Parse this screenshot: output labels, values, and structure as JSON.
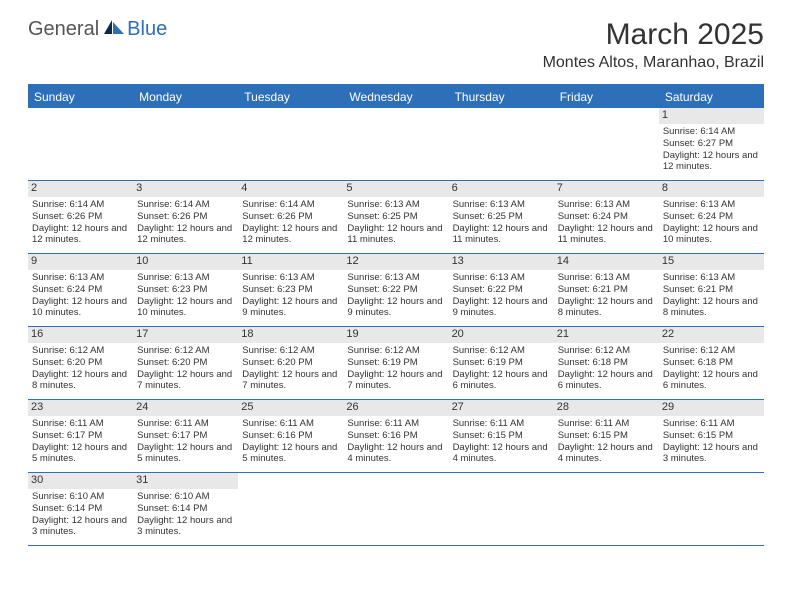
{
  "brand": {
    "part1": "General",
    "part2": "Blue"
  },
  "title": "March 2025",
  "location": "Montes Altos, Maranhao, Brazil",
  "colors": {
    "accent": "#2d6fb8",
    "header_bg": "#2d6fb8",
    "daynum_bg": "#e8e8e8",
    "text": "#333333",
    "bg": "#ffffff"
  },
  "weekdays": [
    "Sunday",
    "Monday",
    "Tuesday",
    "Wednesday",
    "Thursday",
    "Friday",
    "Saturday"
  ],
  "weeks": [
    [
      null,
      null,
      null,
      null,
      null,
      null,
      {
        "n": "1",
        "sr": "Sunrise: 6:14 AM",
        "ss": "Sunset: 6:27 PM",
        "dl": "Daylight: 12 hours and 12 minutes."
      }
    ],
    [
      {
        "n": "2",
        "sr": "Sunrise: 6:14 AM",
        "ss": "Sunset: 6:26 PM",
        "dl": "Daylight: 12 hours and 12 minutes."
      },
      {
        "n": "3",
        "sr": "Sunrise: 6:14 AM",
        "ss": "Sunset: 6:26 PM",
        "dl": "Daylight: 12 hours and 12 minutes."
      },
      {
        "n": "4",
        "sr": "Sunrise: 6:14 AM",
        "ss": "Sunset: 6:26 PM",
        "dl": "Daylight: 12 hours and 12 minutes."
      },
      {
        "n": "5",
        "sr": "Sunrise: 6:13 AM",
        "ss": "Sunset: 6:25 PM",
        "dl": "Daylight: 12 hours and 11 minutes."
      },
      {
        "n": "6",
        "sr": "Sunrise: 6:13 AM",
        "ss": "Sunset: 6:25 PM",
        "dl": "Daylight: 12 hours and 11 minutes."
      },
      {
        "n": "7",
        "sr": "Sunrise: 6:13 AM",
        "ss": "Sunset: 6:24 PM",
        "dl": "Daylight: 12 hours and 11 minutes."
      },
      {
        "n": "8",
        "sr": "Sunrise: 6:13 AM",
        "ss": "Sunset: 6:24 PM",
        "dl": "Daylight: 12 hours and 10 minutes."
      }
    ],
    [
      {
        "n": "9",
        "sr": "Sunrise: 6:13 AM",
        "ss": "Sunset: 6:24 PM",
        "dl": "Daylight: 12 hours and 10 minutes."
      },
      {
        "n": "10",
        "sr": "Sunrise: 6:13 AM",
        "ss": "Sunset: 6:23 PM",
        "dl": "Daylight: 12 hours and 10 minutes."
      },
      {
        "n": "11",
        "sr": "Sunrise: 6:13 AM",
        "ss": "Sunset: 6:23 PM",
        "dl": "Daylight: 12 hours and 9 minutes."
      },
      {
        "n": "12",
        "sr": "Sunrise: 6:13 AM",
        "ss": "Sunset: 6:22 PM",
        "dl": "Daylight: 12 hours and 9 minutes."
      },
      {
        "n": "13",
        "sr": "Sunrise: 6:13 AM",
        "ss": "Sunset: 6:22 PM",
        "dl": "Daylight: 12 hours and 9 minutes."
      },
      {
        "n": "14",
        "sr": "Sunrise: 6:13 AM",
        "ss": "Sunset: 6:21 PM",
        "dl": "Daylight: 12 hours and 8 minutes."
      },
      {
        "n": "15",
        "sr": "Sunrise: 6:13 AM",
        "ss": "Sunset: 6:21 PM",
        "dl": "Daylight: 12 hours and 8 minutes."
      }
    ],
    [
      {
        "n": "16",
        "sr": "Sunrise: 6:12 AM",
        "ss": "Sunset: 6:20 PM",
        "dl": "Daylight: 12 hours and 8 minutes."
      },
      {
        "n": "17",
        "sr": "Sunrise: 6:12 AM",
        "ss": "Sunset: 6:20 PM",
        "dl": "Daylight: 12 hours and 7 minutes."
      },
      {
        "n": "18",
        "sr": "Sunrise: 6:12 AM",
        "ss": "Sunset: 6:20 PM",
        "dl": "Daylight: 12 hours and 7 minutes."
      },
      {
        "n": "19",
        "sr": "Sunrise: 6:12 AM",
        "ss": "Sunset: 6:19 PM",
        "dl": "Daylight: 12 hours and 7 minutes."
      },
      {
        "n": "20",
        "sr": "Sunrise: 6:12 AM",
        "ss": "Sunset: 6:19 PM",
        "dl": "Daylight: 12 hours and 6 minutes."
      },
      {
        "n": "21",
        "sr": "Sunrise: 6:12 AM",
        "ss": "Sunset: 6:18 PM",
        "dl": "Daylight: 12 hours and 6 minutes."
      },
      {
        "n": "22",
        "sr": "Sunrise: 6:12 AM",
        "ss": "Sunset: 6:18 PM",
        "dl": "Daylight: 12 hours and 6 minutes."
      }
    ],
    [
      {
        "n": "23",
        "sr": "Sunrise: 6:11 AM",
        "ss": "Sunset: 6:17 PM",
        "dl": "Daylight: 12 hours and 5 minutes."
      },
      {
        "n": "24",
        "sr": "Sunrise: 6:11 AM",
        "ss": "Sunset: 6:17 PM",
        "dl": "Daylight: 12 hours and 5 minutes."
      },
      {
        "n": "25",
        "sr": "Sunrise: 6:11 AM",
        "ss": "Sunset: 6:16 PM",
        "dl": "Daylight: 12 hours and 5 minutes."
      },
      {
        "n": "26",
        "sr": "Sunrise: 6:11 AM",
        "ss": "Sunset: 6:16 PM",
        "dl": "Daylight: 12 hours and 4 minutes."
      },
      {
        "n": "27",
        "sr": "Sunrise: 6:11 AM",
        "ss": "Sunset: 6:15 PM",
        "dl": "Daylight: 12 hours and 4 minutes."
      },
      {
        "n": "28",
        "sr": "Sunrise: 6:11 AM",
        "ss": "Sunset: 6:15 PM",
        "dl": "Daylight: 12 hours and 4 minutes."
      },
      {
        "n": "29",
        "sr": "Sunrise: 6:11 AM",
        "ss": "Sunset: 6:15 PM",
        "dl": "Daylight: 12 hours and 3 minutes."
      }
    ],
    [
      {
        "n": "30",
        "sr": "Sunrise: 6:10 AM",
        "ss": "Sunset: 6:14 PM",
        "dl": "Daylight: 12 hours and 3 minutes."
      },
      {
        "n": "31",
        "sr": "Sunrise: 6:10 AM",
        "ss": "Sunset: 6:14 PM",
        "dl": "Daylight: 12 hours and 3 minutes."
      },
      null,
      null,
      null,
      null,
      null
    ]
  ]
}
